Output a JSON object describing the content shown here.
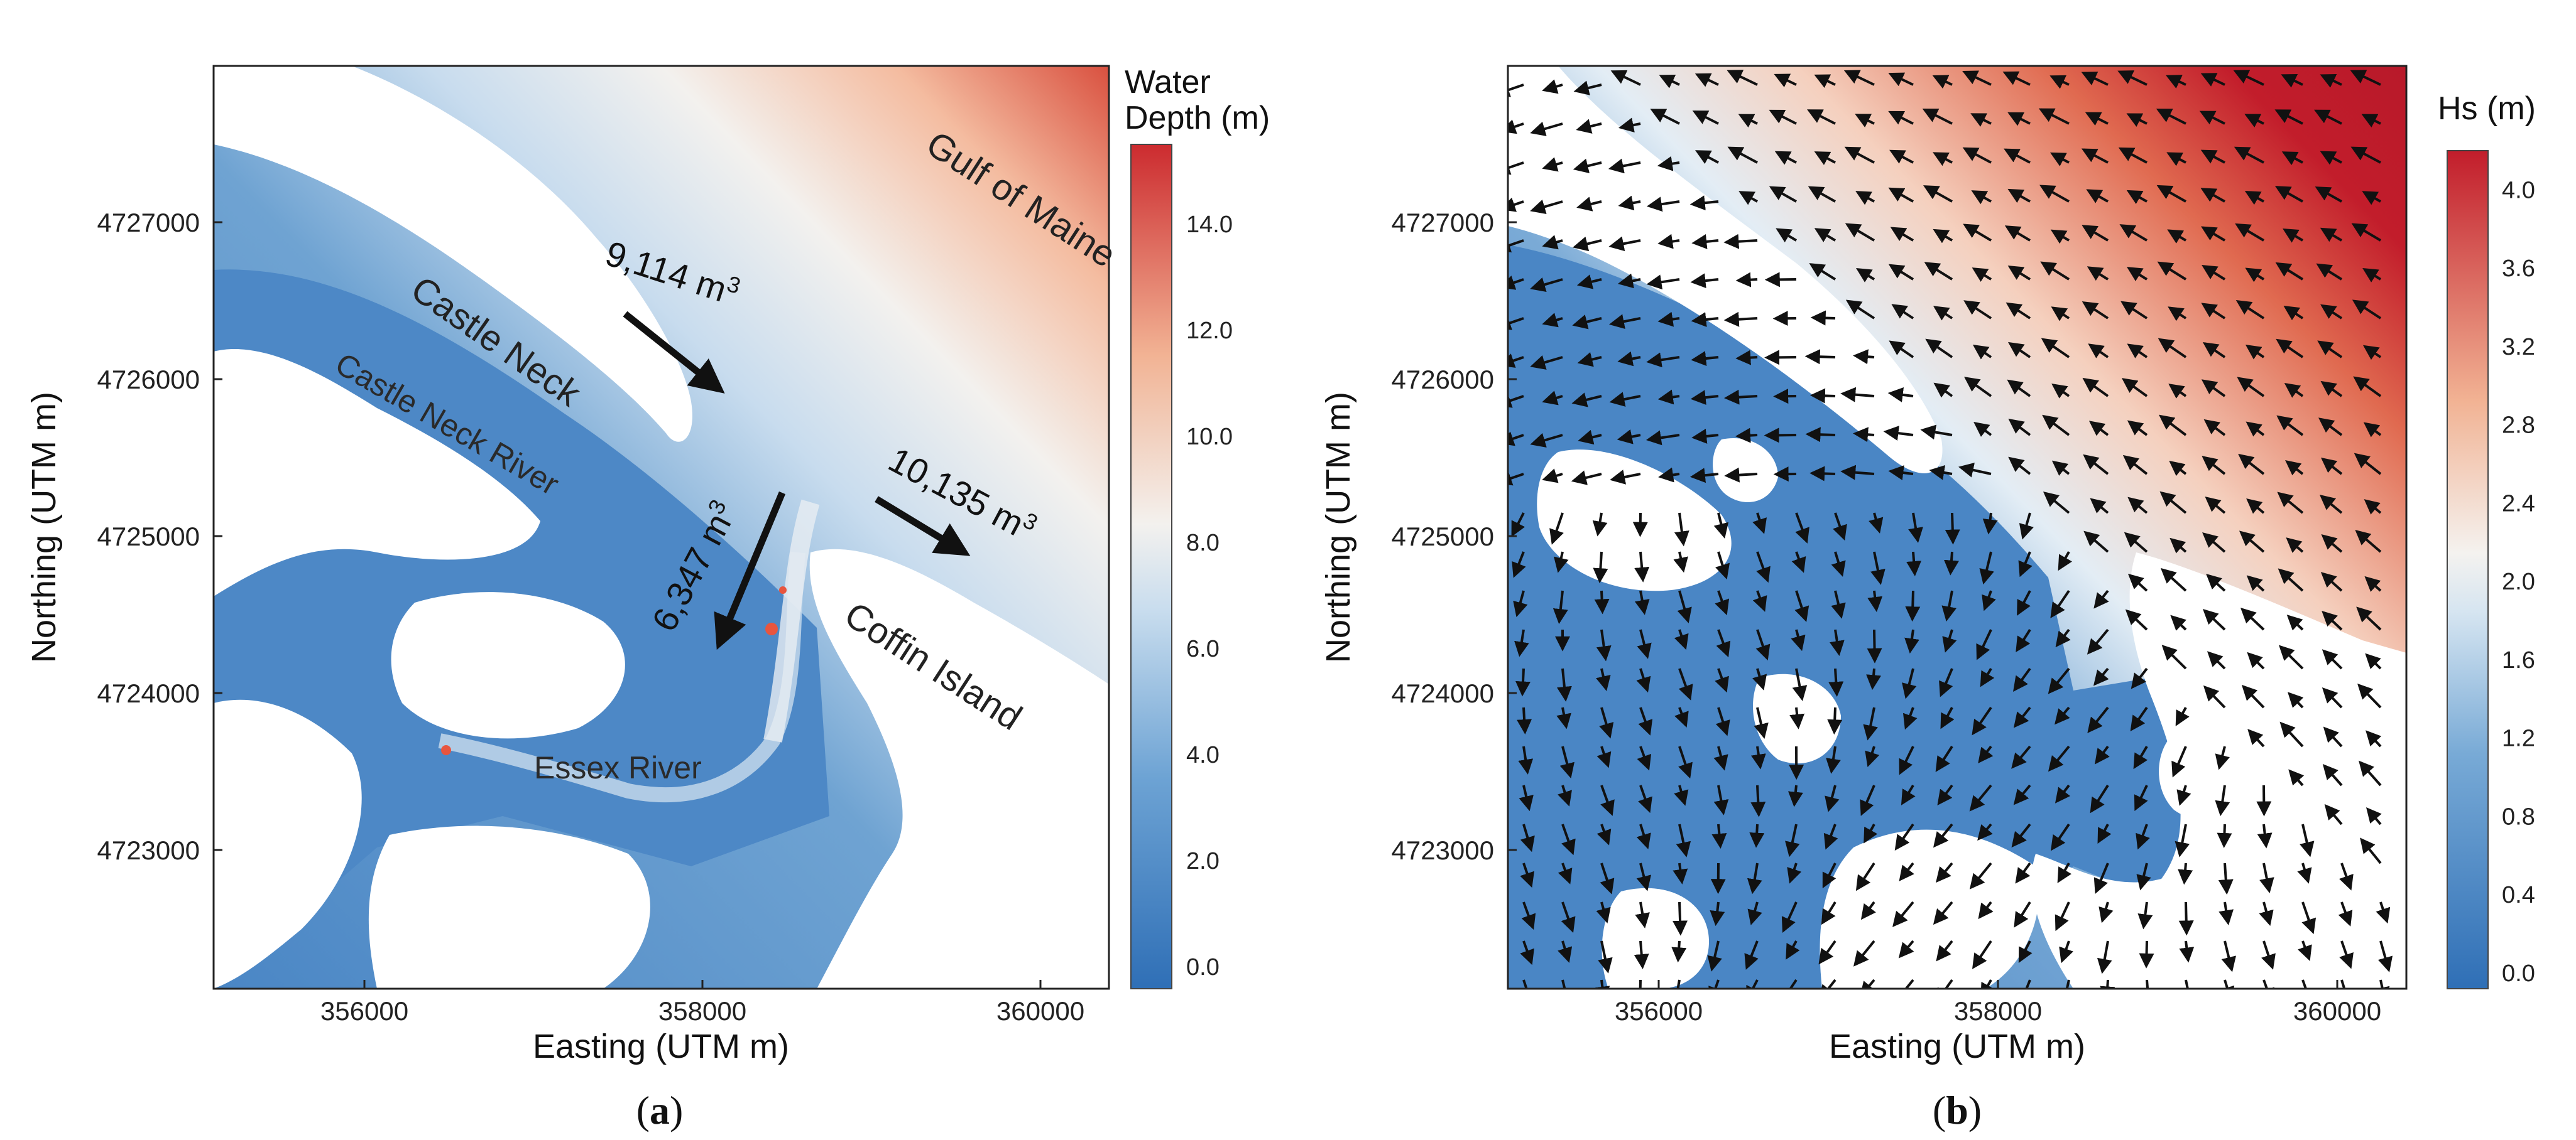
{
  "panels": [
    {
      "id": "a",
      "label": "(a)",
      "xlabel": "Easting (UTM m)",
      "ylabel": "Northing (UTM m)",
      "x_ticks": [
        "356000",
        "358000",
        "360000"
      ],
      "y_ticks": [
        "4727000",
        "4726000",
        "4725000",
        "4724000",
        "4723000"
      ],
      "colorbar": {
        "title_line1": "Water",
        "title_line2": "Depth (m)",
        "ticks": [
          "14.0",
          "12.0",
          "10.0",
          "8.0",
          "6.0",
          "4.0",
          "2.0",
          "0.0"
        ],
        "vmin": 0,
        "vmax": 15.5
      },
      "places": {
        "gulf": "Gulf of Maine",
        "castle_neck": "Castle Neck",
        "castle_neck_river": "Castle Neck River",
        "coffin_island": "Coffin Island",
        "essex_river": "Essex River"
      },
      "fluxes": {
        "north": "9,114 m",
        "south": "6,347 m",
        "east": "10,135 m",
        "unit_sup": "3"
      }
    },
    {
      "id": "b",
      "label": "(b)",
      "xlabel": "Easting (UTM m)",
      "ylabel": "Northing (UTM m)",
      "x_ticks": [
        "356000",
        "358000",
        "360000"
      ],
      "y_ticks": [
        "4727000",
        "4726000",
        "4725000",
        "4724000",
        "4723000"
      ],
      "colorbar": {
        "title": "Hs (m)",
        "ticks": [
          "4.0",
          "3.6",
          "3.2",
          "2.8",
          "2.4",
          "2.0",
          "1.6",
          "1.2",
          "0.8",
          "0.4",
          "0.0"
        ],
        "vmin": 0,
        "vmax": 4.2
      }
    }
  ],
  "colors": {
    "land": "#ffffff",
    "deep_red": "#c8202e",
    "shallow_blue": "#3d7fc4",
    "mid_white": "#f4f3f0",
    "arrow": "#111111"
  }
}
